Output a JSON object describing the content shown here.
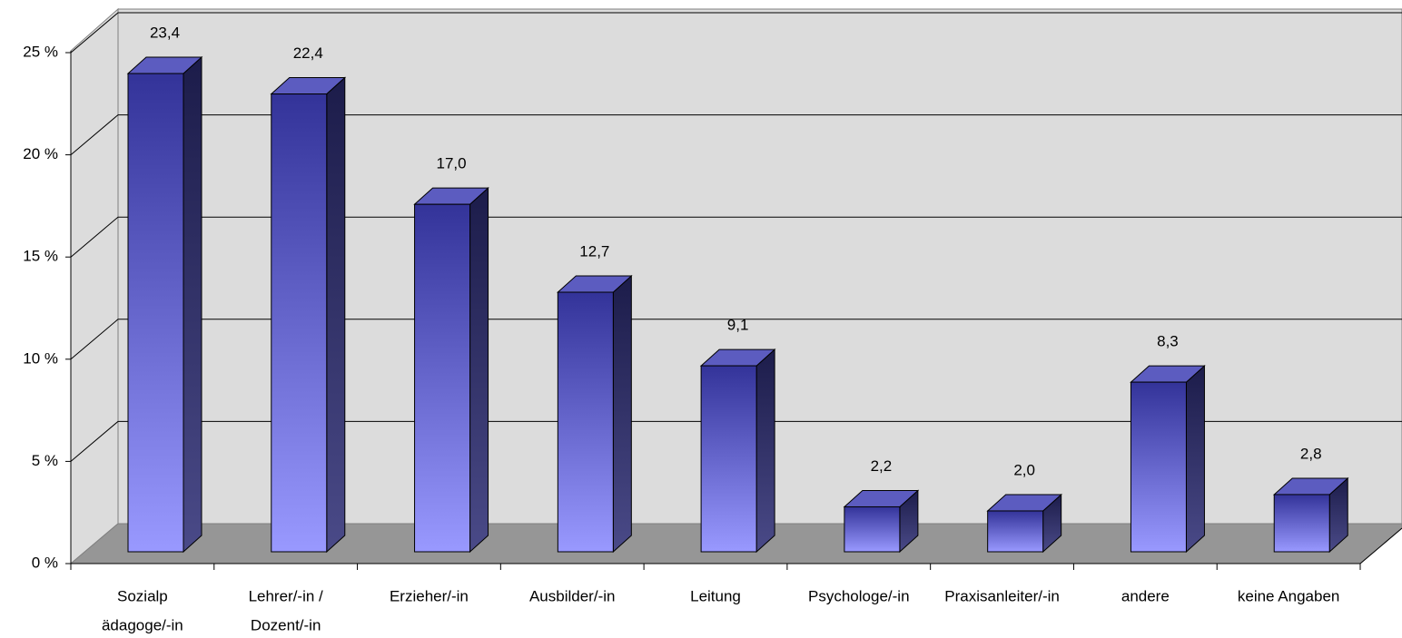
{
  "chart_data": {
    "type": "bar3d",
    "categories": [
      [
        "Sozialp",
        "ädagoge/-in"
      ],
      [
        "Lehrer/-in /",
        "Dozent/-in"
      ],
      [
        "Erzieher/-in"
      ],
      [
        "Ausbilder/-in"
      ],
      [
        "Leitung"
      ],
      [
        "Psychologe/-in"
      ],
      [
        "Praxisanleiter/-in"
      ],
      [
        "andere"
      ],
      [
        "keine Angaben"
      ]
    ],
    "values": [
      23.4,
      22.4,
      17.0,
      12.7,
      9.1,
      2.2,
      2.0,
      8.3,
      2.8
    ],
    "value_labels": [
      "23,4",
      "22,4",
      "17,0",
      "12,7",
      "9,1",
      "2,2",
      "2,0",
      "8,3",
      "2,8"
    ],
    "ylim": [
      0,
      25
    ],
    "yticks": [
      {
        "value": 0,
        "label": "0 %"
      },
      {
        "value": 5,
        "label": "5 %"
      },
      {
        "value": 10,
        "label": "10 %"
      },
      {
        "value": 15,
        "label": "15 %"
      },
      {
        "value": 20,
        "label": "20 %"
      },
      {
        "value": 25,
        "label": "25 %"
      }
    ],
    "grid": true,
    "color_top": "#333399",
    "color_bottom": "#9999ff"
  }
}
